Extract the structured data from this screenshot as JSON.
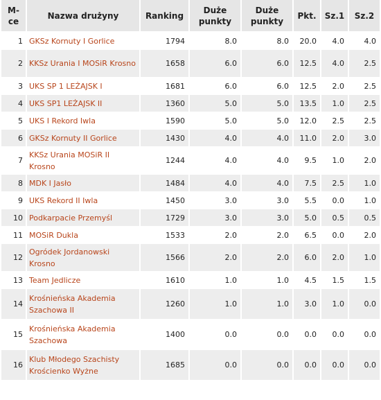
{
  "table": {
    "headers": {
      "pos": "M-ce",
      "name": "Nazwa drużyny",
      "ranking": "Ranking",
      "big_points_1": "Duże punkty",
      "big_points_2": "Duże punkty",
      "pkt": "Pkt.",
      "sz1": "Sz.1",
      "sz2": "Sz.2"
    },
    "rows": [
      {
        "pos": "1",
        "name": "GKSz Kornuty I Gorlice",
        "ranking": "1794",
        "big1": "8.0",
        "big2": "8.0",
        "pkt": "20.0",
        "sz1": "4.0",
        "sz2": "4.0"
      },
      {
        "pos": "2",
        "name": "KKSz Urania I MOSiR Krosno",
        "ranking": "1658",
        "big1": "6.0",
        "big2": "6.0",
        "pkt": "12.5",
        "sz1": "4.0",
        "sz2": "2.5"
      },
      {
        "pos": "3",
        "name": "UKS SP 1 LEŻAJSK I",
        "ranking": "1681",
        "big1": "6.0",
        "big2": "6.0",
        "pkt": "12.5",
        "sz1": "2.0",
        "sz2": "2.5"
      },
      {
        "pos": "4",
        "name": "UKS SP1 LEŻAJSK II",
        "ranking": "1360",
        "big1": "5.0",
        "big2": "5.0",
        "pkt": "13.5",
        "sz1": "1.0",
        "sz2": "2.5"
      },
      {
        "pos": "5",
        "name": "UKS I Rekord Iwla",
        "ranking": "1590",
        "big1": "5.0",
        "big2": "5.0",
        "pkt": "12.0",
        "sz1": "2.5",
        "sz2": "2.5"
      },
      {
        "pos": "6",
        "name": "GKSz Kornuty II Gorlice",
        "ranking": "1430",
        "big1": "4.0",
        "big2": "4.0",
        "pkt": "11.0",
        "sz1": "2.0",
        "sz2": "3.0"
      },
      {
        "pos": "7",
        "name": "KKSz Urania MOSiR II Krosno",
        "ranking": "1244",
        "big1": "4.0",
        "big2": "4.0",
        "pkt": "9.5",
        "sz1": "1.0",
        "sz2": "2.0"
      },
      {
        "pos": "8",
        "name": "MDK I Jasło",
        "ranking": "1484",
        "big1": "4.0",
        "big2": "4.0",
        "pkt": "7.5",
        "sz1": "2.5",
        "sz2": "1.0"
      },
      {
        "pos": "9",
        "name": "UKS Rekord II Iwla",
        "ranking": "1450",
        "big1": "3.0",
        "big2": "3.0",
        "pkt": "5.5",
        "sz1": "0.0",
        "sz2": "1.0"
      },
      {
        "pos": "10",
        "name": "Podkarpacie Przemyśl",
        "ranking": "1729",
        "big1": "3.0",
        "big2": "3.0",
        "pkt": "5.0",
        "sz1": "0.5",
        "sz2": "0.5"
      },
      {
        "pos": "11",
        "name": "MOSiR Dukla",
        "ranking": "1533",
        "big1": "2.0",
        "big2": "2.0",
        "pkt": "6.5",
        "sz1": "0.0",
        "sz2": "2.0"
      },
      {
        "pos": "12",
        "name": "Ogródek Jordanowski Krosno",
        "ranking": "1566",
        "big1": "2.0",
        "big2": "2.0",
        "pkt": "6.0",
        "sz1": "2.0",
        "sz2": "1.0"
      },
      {
        "pos": "13",
        "name": "Team Jedlicze",
        "ranking": "1610",
        "big1": "1.0",
        "big2": "1.0",
        "pkt": "4.5",
        "sz1": "1.5",
        "sz2": "1.5"
      },
      {
        "pos": "14",
        "name": "Krośnieńska Akademia Szachowa II",
        "ranking": "1260",
        "big1": "1.0",
        "big2": "1.0",
        "pkt": "3.0",
        "sz1": "1.0",
        "sz2": "0.0"
      },
      {
        "pos": "15",
        "name": "Krośnieńska Akademia Szachowa",
        "ranking": "1400",
        "big1": "0.0",
        "big2": "0.0",
        "pkt": "0.0",
        "sz1": "0.0",
        "sz2": "0.0"
      },
      {
        "pos": "16",
        "name": "Klub Młodego Szachisty Krościenko Wyżne",
        "ranking": "1685",
        "big1": "0.0",
        "big2": "0.0",
        "pkt": "0.0",
        "sz1": "0.0",
        "sz2": "0.0"
      }
    ]
  },
  "colors": {
    "team_link": "#b8451b",
    "header_bg": "#e6e6e6",
    "row_alt_bg": "#ededed"
  }
}
